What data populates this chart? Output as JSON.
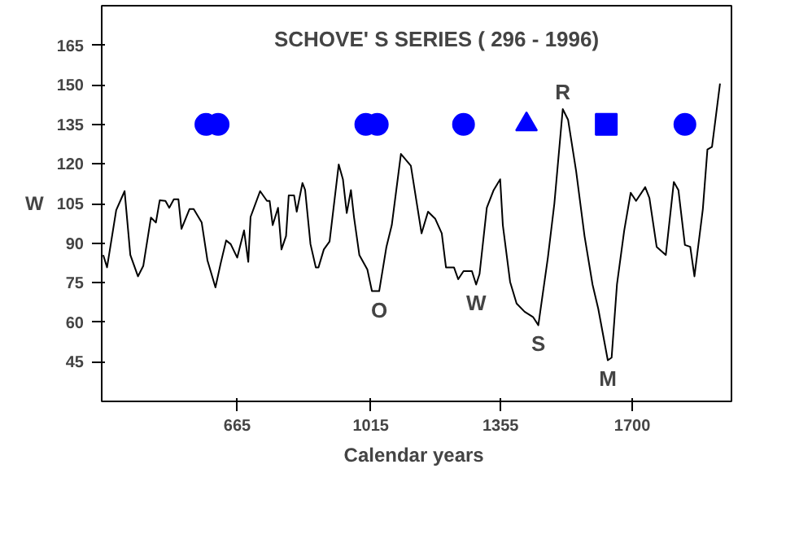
{
  "chart_data": {
    "type": "line",
    "title": "SCHOVE' S  SERIES ( 296 - 1996)",
    "xlabel": "Calendar  years",
    "ylabel": "W",
    "xlim": [
      310,
      1960
    ],
    "ylim": [
      30,
      180
    ],
    "xticks": [
      665,
      1015,
      1355,
      1700
    ],
    "yticks": [
      45,
      60,
      75,
      90,
      105,
      120,
      135,
      150,
      165
    ],
    "grid": false,
    "series": [
      {
        "color": "#000000",
        "x": [
          314,
          324,
          348,
          370,
          385,
          405,
          419,
          439,
          452,
          462,
          477,
          487,
          499,
          511,
          519,
          540,
          551,
          572,
          587,
          608,
          622,
          636,
          648,
          665,
          683,
          694,
          700,
          725,
          743,
          750,
          758,
          772,
          781,
          793,
          800,
          814,
          821,
          836,
          843,
          857,
          871,
          878,
          892,
          907,
          931,
          942,
          952,
          963,
          971,
          985,
          1006,
          1018,
          1037,
          1056,
          1070,
          1094,
          1120,
          1148,
          1165,
          1184,
          1201,
          1212,
          1233,
          1244,
          1258,
          1280,
          1291,
          1300,
          1319,
          1337,
          1354,
          1361,
          1380,
          1397,
          1418,
          1440,
          1454,
          1479,
          1496,
          1518,
          1532,
          1553,
          1575,
          1596,
          1611,
          1636,
          1646,
          1660,
          1679,
          1696,
          1710,
          1734,
          1745,
          1764,
          1788,
          1809,
          1821,
          1838,
          1852,
          1863,
          1885,
          1897,
          1909,
          1930
        ],
        "values": [
          85.5,
          80.8,
          102.5,
          109.7,
          85.5,
          77.4,
          81.4,
          99.7,
          97.8,
          106.2,
          106,
          103.4,
          106.6,
          106.6,
          95.4,
          102.9,
          102.9,
          97.8,
          83.5,
          73.2,
          82.5,
          91,
          89.6,
          84.5,
          94.8,
          82.9,
          99.9,
          109.7,
          106,
          106,
          96.8,
          103.4,
          87.6,
          92.7,
          108.1,
          108.1,
          101.9,
          112.8,
          110.1,
          89.6,
          80.8,
          80.8,
          87.6,
          90.6,
          119.8,
          114.2,
          101.4,
          110.1,
          99.9,
          85.5,
          80,
          71.8,
          71.8,
          88.6,
          96.8,
          123.8,
          119.3,
          93.7,
          101.9,
          99.2,
          93.7,
          80.8,
          80.8,
          76.3,
          79.4,
          79.4,
          74.3,
          78.3,
          103.4,
          110.1,
          114.2,
          96.8,
          75.3,
          67.1,
          64,
          62,
          58.9,
          84.5,
          105,
          140.8,
          136.7,
          117.3,
          92.7,
          74.3,
          65.1,
          45.6,
          46.6,
          74.3,
          94.8,
          109.1,
          106,
          111.2,
          107.1,
          88.6,
          85.5,
          113.2,
          110.1,
          89.3,
          88.6,
          77.4,
          102.9,
          125.5,
          126.5,
          150.5
        ]
      },
      {
        "type": "scatter",
        "marker": "circle",
        "color": "#0000ff",
        "x": [
          583,
          615,
          1002,
          1032,
          1258,
          1838
        ],
        "values": [
          135,
          135,
          135,
          135,
          135,
          135
        ]
      },
      {
        "type": "scatter",
        "marker": "triangle",
        "color": "#0000ff",
        "x": [
          1423
        ],
        "values": [
          135
        ]
      },
      {
        "type": "scatter",
        "marker": "square",
        "color": "#0000ff",
        "x": [
          1632
        ],
        "values": [
          135
        ]
      }
    ],
    "annotations": [
      {
        "text": "O",
        "x": 1037,
        "y": 71.8
      },
      {
        "text": "W",
        "x": 1291,
        "y": 74.3
      },
      {
        "text": "S",
        "x": 1454,
        "y": 58.9
      },
      {
        "text": "R",
        "x": 1518,
        "y": 140.8
      },
      {
        "text": "M",
        "x": 1636,
        "y": 45.6
      }
    ]
  }
}
